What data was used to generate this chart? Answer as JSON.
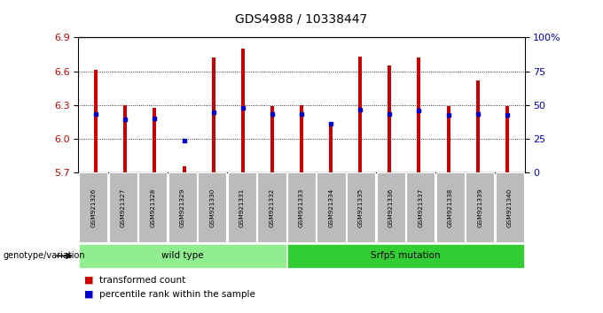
{
  "title": "GDS4988 / 10338447",
  "samples": [
    "GSM921326",
    "GSM921327",
    "GSM921328",
    "GSM921329",
    "GSM921330",
    "GSM921331",
    "GSM921332",
    "GSM921333",
    "GSM921334",
    "GSM921335",
    "GSM921336",
    "GSM921337",
    "GSM921338",
    "GSM921339",
    "GSM921340"
  ],
  "bar_tops": [
    6.61,
    6.3,
    6.27,
    5.75,
    6.72,
    6.8,
    6.29,
    6.3,
    6.14,
    6.73,
    6.65,
    6.72,
    6.29,
    6.52,
    6.29
  ],
  "blue_dot_y": [
    6.22,
    6.17,
    6.18,
    5.98,
    6.23,
    6.27,
    6.22,
    6.22,
    6.13,
    6.26,
    6.22,
    6.25,
    6.21,
    6.22,
    6.21
  ],
  "ylim_left": [
    5.7,
    6.9
  ],
  "yticks_left": [
    5.7,
    6.0,
    6.3,
    6.6,
    6.9
  ],
  "yticks_right": [
    0,
    25,
    50,
    75,
    100
  ],
  "ytick_labels_right": [
    "0",
    "25",
    "50",
    "75",
    "100%"
  ],
  "bar_bottom": 5.7,
  "bar_color": "#cc0000",
  "blue_color": "#0000cc",
  "groups": [
    {
      "label": "wild type",
      "start": 0,
      "end": 7,
      "color": "#90ee90"
    },
    {
      "label": "Srfp5 mutation",
      "start": 7,
      "end": 15,
      "color": "#32cd32"
    }
  ],
  "group_row_label": "genotype/variation",
  "legend_items": [
    {
      "label": "transformed count",
      "color": "#cc0000"
    },
    {
      "label": "percentile rank within the sample",
      "color": "#0000cc"
    }
  ],
  "right_axis_color": "#0000cc",
  "left_axis_color": "#cc0000",
  "sample_box_color": "#bbbbbb",
  "bar_width": 0.12
}
